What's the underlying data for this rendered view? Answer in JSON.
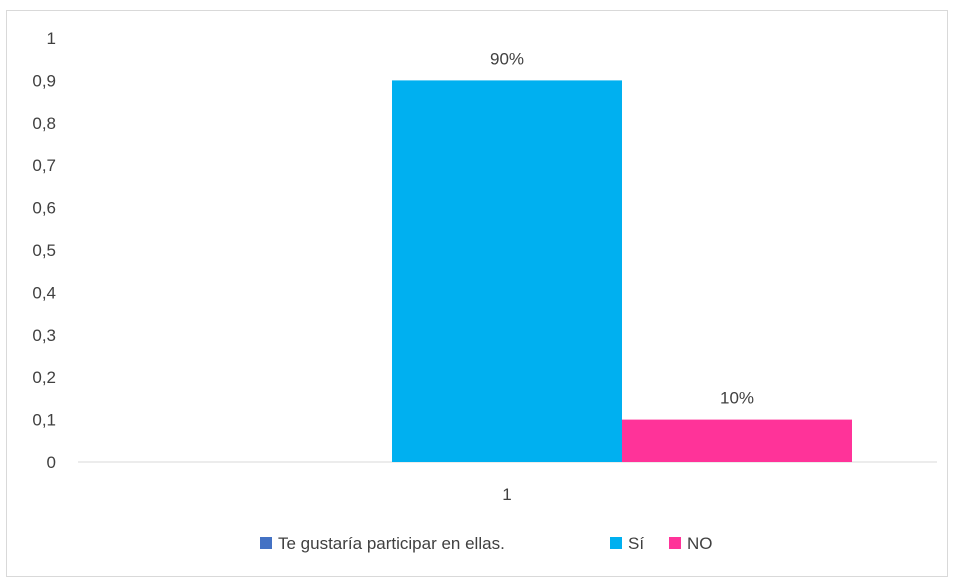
{
  "chart_data": {
    "type": "bar",
    "categories": [
      "1"
    ],
    "series": [
      {
        "name": "Te gustaría participar en ellas.",
        "values": [
          null
        ],
        "color": "#4472C4"
      },
      {
        "name": "Sí",
        "values": [
          0.9
        ],
        "color": "#00B0F0",
        "data_label": "90%"
      },
      {
        "name": "NO",
        "values": [
          0.1
        ],
        "color": "#FF3399",
        "data_label": "10%"
      }
    ],
    "ylim": [
      0,
      1
    ],
    "yticks": [
      "0",
      "0,1",
      "0,2",
      "0,3",
      "0,4",
      "0,5",
      "0,6",
      "0,7",
      "0,8",
      "0,9",
      "1"
    ],
    "grid": false,
    "legend": "bottom"
  }
}
